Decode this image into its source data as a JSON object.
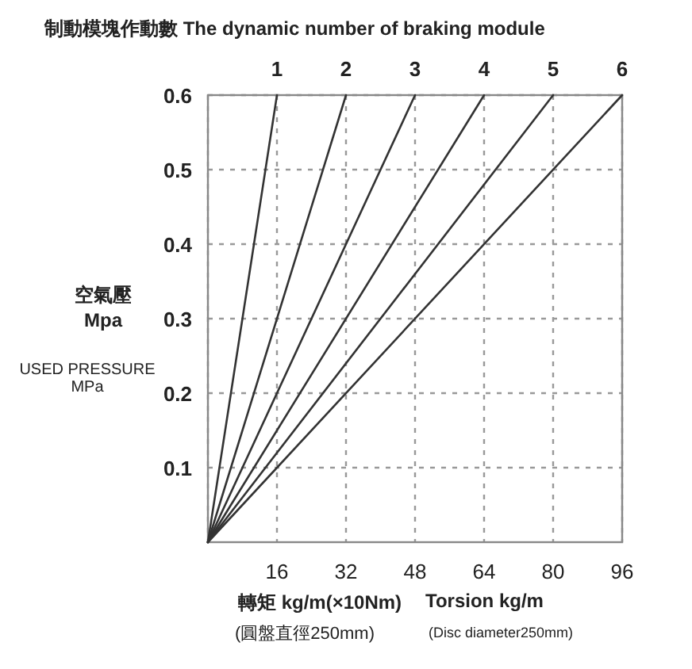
{
  "chart_data": {
    "type": "line",
    "x2label": "制動模塊作動數 The dynamic number of braking module",
    "ylabel": "空氣壓 Mpa",
    "xlabel": "轉矩 kg/m(×10Nm)",
    "annotations": [
      "(圓盤直徑250mm)",
      "Torsion kg/m",
      "(Disc diameter250mm)",
      "USED PRESSURE MPa"
    ],
    "xlim": [
      0,
      96
    ],
    "xticks": [
      {
        "value": 0,
        "label": null
      },
      16,
      32,
      48,
      64,
      80,
      96
    ],
    "x2lim": [
      0,
      6
    ],
    "x2ticks": [
      1,
      2,
      3,
      4,
      5,
      6
    ],
    "ylim": [
      0,
      0.6
    ],
    "yticks": [
      0.1,
      0.2,
      0.3,
      0.4,
      0.5,
      0.6
    ],
    "grid": true,
    "line_style": "solid",
    "series": [
      {
        "color": "#333333",
        "x": [
          0,
          16
        ],
        "values": [
          0,
          0.6
        ]
      },
      {
        "color": "#333333",
        "x": [
          0,
          32
        ],
        "values": [
          0,
          0.6
        ]
      },
      {
        "color": "#333333",
        "x": [
          0,
          48
        ],
        "values": [
          0,
          0.6
        ]
      },
      {
        "color": "#333333",
        "x": [
          0,
          64
        ],
        "values": [
          0,
          0.6
        ]
      },
      {
        "color": "#333333",
        "x": [
          0,
          80
        ],
        "values": [
          0,
          0.6
        ]
      },
      {
        "color": "#333333",
        "x": [
          0,
          96
        ],
        "values": [
          0,
          0.6
        ]
      }
    ]
  }
}
